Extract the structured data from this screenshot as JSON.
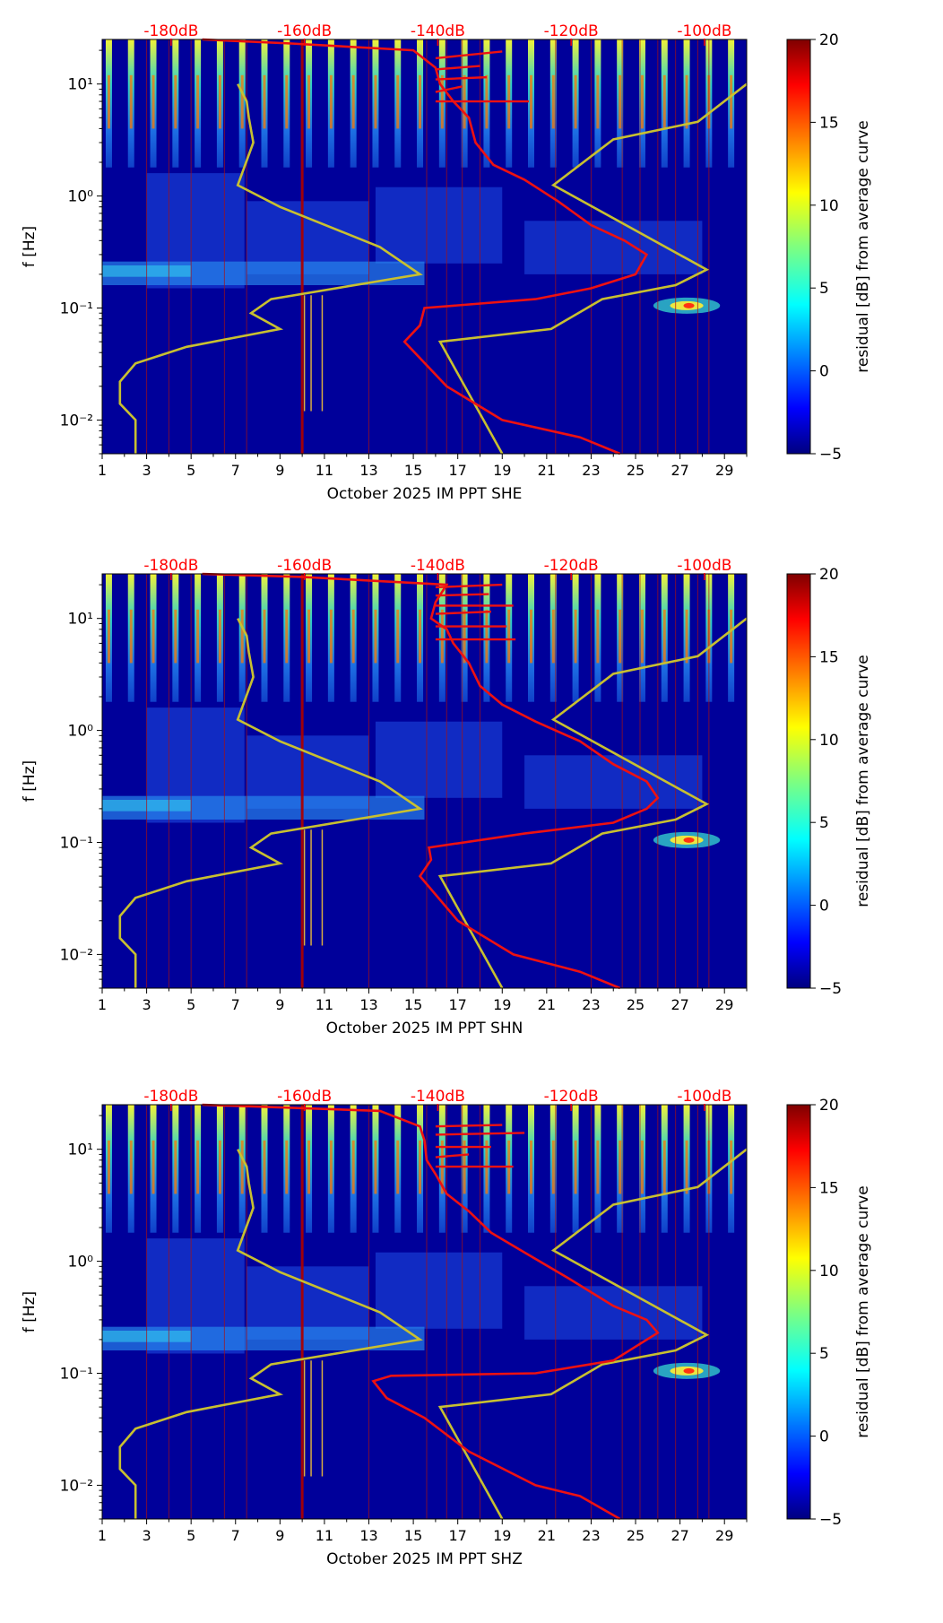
{
  "chart_data": [
    {
      "type": "heatmap",
      "channel": "SHE",
      "xlabel": "October 2025 IM PPT  SHE",
      "ylabel": "f [Hz]",
      "x_range": [
        1,
        30
      ],
      "x_ticks": [
        "1",
        "3",
        "5",
        "7",
        "9",
        "11",
        "13",
        "15",
        "17",
        "19",
        "21",
        "23",
        "25",
        "27",
        "29"
      ],
      "y_range": [
        0.005,
        25
      ],
      "y_scale": "log",
      "y_ticks": [
        {
          "value": 0.01,
          "label": "10⁻²"
        },
        {
          "value": 0.1,
          "label": "10⁻¹"
        },
        {
          "value": 1,
          "label": "10⁰"
        },
        {
          "value": 10,
          "label": "10¹"
        }
      ],
      "db_labels": [
        "-180dB",
        "-160dB",
        "-140dB",
        "-120dB",
        "-100dB"
      ],
      "db_label_days": [
        4.1,
        10.1,
        16.1,
        22.1,
        28.1
      ],
      "colorbar": {
        "label": "residual [dB] from average curve",
        "min": -5,
        "max": 20,
        "ticks": [
          "20",
          "15",
          "10",
          "5",
          "0",
          "−5"
        ]
      },
      "noise_model_high": [
        [
          2.5,
          0.005
        ],
        [
          2.5,
          0.01
        ],
        [
          1.8,
          0.014
        ],
        [
          1.8,
          0.022
        ],
        [
          2.5,
          0.032
        ],
        [
          4.8,
          0.045
        ],
        [
          9.0,
          0.065
        ],
        [
          7.7,
          0.09
        ],
        [
          8.6,
          0.12
        ],
        [
          15.3,
          0.2
        ],
        [
          13.5,
          0.35
        ],
        [
          9.0,
          0.8
        ],
        [
          7.1,
          1.25
        ],
        [
          7.8,
          3.0
        ],
        [
          7.6,
          5.0
        ],
        [
          7.5,
          7.0
        ],
        [
          7.1,
          10.0
        ]
      ],
      "noise_model_low": [
        [
          19.0,
          0.005
        ],
        [
          16.2,
          0.05
        ],
        [
          21.2,
          0.065
        ],
        [
          23.5,
          0.12
        ],
        [
          26.8,
          0.16
        ],
        [
          28.2,
          0.22
        ],
        [
          21.3,
          1.25
        ],
        [
          24.0,
          3.2
        ],
        [
          27.8,
          4.6
        ],
        [
          30.0,
          10.0
        ]
      ],
      "mean_psd": [
        [
          24.3,
          0.005
        ],
        [
          22.5,
          0.007
        ],
        [
          19.0,
          0.01
        ],
        [
          16.5,
          0.02
        ],
        [
          14.6,
          0.05
        ],
        [
          15.3,
          0.07
        ],
        [
          15.5,
          0.1
        ],
        [
          20.5,
          0.12
        ],
        [
          23.0,
          0.15
        ],
        [
          25.0,
          0.2
        ],
        [
          25.5,
          0.3
        ],
        [
          24.5,
          0.4
        ],
        [
          23.0,
          0.55
        ],
        [
          21.5,
          0.9
        ],
        [
          20.0,
          1.4
        ],
        [
          18.6,
          1.9
        ],
        [
          17.8,
          3.0
        ],
        [
          17.5,
          5.0
        ],
        [
          16.8,
          7.0
        ],
        [
          16.2,
          10.0
        ],
        [
          16.0,
          14.0
        ],
        [
          15.0,
          20.0
        ],
        [
          9.5,
          23.0
        ],
        [
          5.5,
          25.0
        ]
      ],
      "spikes": [
        [
          16.0,
          7.0
        ],
        [
          20.2,
          7.0
        ],
        [
          16.0,
          8.5
        ],
        [
          17.2,
          9.5
        ],
        [
          16.0,
          11.0
        ],
        [
          18.3,
          11.5
        ],
        [
          16.0,
          13.5
        ],
        [
          18.0,
          14.5
        ],
        [
          16.0,
          17.0
        ],
        [
          19.0,
          19.5
        ]
      ]
    },
    {
      "type": "heatmap",
      "channel": "SHN",
      "xlabel": "October 2025 IM PPT  SHN",
      "ylabel": "f [Hz]",
      "x_range": [
        1,
        30
      ],
      "x_ticks": [
        "1",
        "3",
        "5",
        "7",
        "9",
        "11",
        "13",
        "15",
        "17",
        "19",
        "21",
        "23",
        "25",
        "27",
        "29"
      ],
      "y_range": [
        0.005,
        25
      ],
      "y_scale": "log",
      "y_ticks": [
        {
          "value": 0.01,
          "label": "10⁻²"
        },
        {
          "value": 0.1,
          "label": "10⁻¹"
        },
        {
          "value": 1,
          "label": "10⁰"
        },
        {
          "value": 10,
          "label": "10¹"
        }
      ],
      "db_labels": [
        "-180dB",
        "-160dB",
        "-140dB",
        "-120dB",
        "-100dB"
      ],
      "db_label_days": [
        4.1,
        10.1,
        16.1,
        22.1,
        28.1
      ],
      "colorbar": {
        "label": "residual [dB] from average curve",
        "min": -5,
        "max": 20,
        "ticks": [
          "20",
          "15",
          "10",
          "5",
          "0",
          "−5"
        ]
      },
      "noise_model_high": [
        [
          2.5,
          0.005
        ],
        [
          2.5,
          0.01
        ],
        [
          1.8,
          0.014
        ],
        [
          1.8,
          0.022
        ],
        [
          2.5,
          0.032
        ],
        [
          4.8,
          0.045
        ],
        [
          9.0,
          0.065
        ],
        [
          7.7,
          0.09
        ],
        [
          8.6,
          0.12
        ],
        [
          15.3,
          0.2
        ],
        [
          13.5,
          0.35
        ],
        [
          9.0,
          0.8
        ],
        [
          7.1,
          1.25
        ],
        [
          7.8,
          3.0
        ],
        [
          7.6,
          5.0
        ],
        [
          7.5,
          7.0
        ],
        [
          7.1,
          10.0
        ]
      ],
      "noise_model_low": [
        [
          19.0,
          0.005
        ],
        [
          16.2,
          0.05
        ],
        [
          21.2,
          0.065
        ],
        [
          23.5,
          0.12
        ],
        [
          26.8,
          0.16
        ],
        [
          28.2,
          0.22
        ],
        [
          21.3,
          1.25
        ],
        [
          24.0,
          3.2
        ],
        [
          27.8,
          4.6
        ],
        [
          30.0,
          10.0
        ]
      ],
      "mean_psd": [
        [
          24.3,
          0.005
        ],
        [
          22.5,
          0.007
        ],
        [
          19.5,
          0.01
        ],
        [
          17.0,
          0.02
        ],
        [
          15.3,
          0.05
        ],
        [
          15.8,
          0.07
        ],
        [
          15.7,
          0.09
        ],
        [
          20.0,
          0.12
        ],
        [
          24.0,
          0.15
        ],
        [
          25.5,
          0.2
        ],
        [
          26.0,
          0.25
        ],
        [
          25.5,
          0.35
        ],
        [
          24.0,
          0.5
        ],
        [
          22.5,
          0.8
        ],
        [
          20.5,
          1.2
        ],
        [
          19.0,
          1.7
        ],
        [
          18.0,
          2.5
        ],
        [
          17.5,
          4.0
        ],
        [
          16.8,
          6.0
        ],
        [
          16.5,
          8.0
        ],
        [
          15.8,
          10.0
        ],
        [
          16.0,
          14.0
        ],
        [
          16.5,
          20.0
        ],
        [
          10.0,
          23.5
        ],
        [
          5.5,
          25.0
        ]
      ],
      "spikes": [
        [
          16.0,
          6.5
        ],
        [
          19.6,
          6.5
        ],
        [
          16.0,
          8.5
        ],
        [
          19.2,
          8.5
        ],
        [
          16.0,
          11.0
        ],
        [
          18.5,
          11.5
        ],
        [
          16.0,
          13.0
        ],
        [
          19.5,
          13.0
        ],
        [
          16.0,
          16.0
        ],
        [
          18.4,
          16.5
        ],
        [
          16.0,
          19.0
        ],
        [
          19.0,
          20.0
        ]
      ]
    },
    {
      "type": "heatmap",
      "channel": "SHZ",
      "xlabel": "October 2025 IM PPT  SHZ",
      "ylabel": "f [Hz]",
      "x_range": [
        1,
        30
      ],
      "x_ticks": [
        "1",
        "3",
        "5",
        "7",
        "9",
        "11",
        "13",
        "15",
        "17",
        "19",
        "21",
        "23",
        "25",
        "27",
        "29"
      ],
      "y_range": [
        0.005,
        25
      ],
      "y_scale": "log",
      "y_ticks": [
        {
          "value": 0.01,
          "label": "10⁻²"
        },
        {
          "value": 0.1,
          "label": "10⁻¹"
        },
        {
          "value": 1,
          "label": "10⁰"
        },
        {
          "value": 10,
          "label": "10¹"
        }
      ],
      "db_labels": [
        "-180dB",
        "-160dB",
        "-140dB",
        "-120dB",
        "-100dB"
      ],
      "db_label_days": [
        4.1,
        10.1,
        16.1,
        22.1,
        28.1
      ],
      "colorbar": {
        "label": "residual [dB] from average curve",
        "min": -5,
        "max": 20,
        "ticks": [
          "20",
          "15",
          "10",
          "5",
          "0",
          "−5"
        ]
      },
      "noise_model_high": [
        [
          2.5,
          0.005
        ],
        [
          2.5,
          0.01
        ],
        [
          1.8,
          0.014
        ],
        [
          1.8,
          0.022
        ],
        [
          2.5,
          0.032
        ],
        [
          4.8,
          0.045
        ],
        [
          9.0,
          0.065
        ],
        [
          7.7,
          0.09
        ],
        [
          8.6,
          0.12
        ],
        [
          15.3,
          0.2
        ],
        [
          13.5,
          0.35
        ],
        [
          9.0,
          0.8
        ],
        [
          7.1,
          1.25
        ],
        [
          7.8,
          3.0
        ],
        [
          7.6,
          5.0
        ],
        [
          7.5,
          7.0
        ],
        [
          7.1,
          10.0
        ]
      ],
      "noise_model_low": [
        [
          19.0,
          0.005
        ],
        [
          16.2,
          0.05
        ],
        [
          21.2,
          0.065
        ],
        [
          23.5,
          0.12
        ],
        [
          26.8,
          0.16
        ],
        [
          28.2,
          0.22
        ],
        [
          21.3,
          1.25
        ],
        [
          24.0,
          3.2
        ],
        [
          27.8,
          4.6
        ],
        [
          30.0,
          10.0
        ]
      ],
      "mean_psd": [
        [
          24.3,
          0.005
        ],
        [
          22.5,
          0.008
        ],
        [
          20.5,
          0.01
        ],
        [
          17.5,
          0.02
        ],
        [
          15.5,
          0.04
        ],
        [
          13.8,
          0.06
        ],
        [
          13.2,
          0.085
        ],
        [
          14.0,
          0.095
        ],
        [
          20.5,
          0.1
        ],
        [
          24.0,
          0.13
        ],
        [
          26.0,
          0.23
        ],
        [
          25.5,
          0.3
        ],
        [
          24.0,
          0.4
        ],
        [
          22.0,
          0.7
        ],
        [
          20.0,
          1.2
        ],
        [
          18.5,
          1.8
        ],
        [
          17.5,
          2.8
        ],
        [
          16.5,
          4.0
        ],
        [
          16.0,
          6.0
        ],
        [
          15.6,
          8.0
        ],
        [
          15.5,
          12.0
        ],
        [
          15.3,
          16.0
        ],
        [
          13.5,
          22.0
        ],
        [
          5.5,
          25.0
        ]
      ],
      "spikes": [
        [
          16.0,
          7.0
        ],
        [
          19.5,
          7.0
        ],
        [
          16.0,
          8.5
        ],
        [
          17.5,
          9.0
        ],
        [
          16.0,
          10.5
        ],
        [
          18.5,
          10.5
        ],
        [
          16.0,
          13.5
        ],
        [
          20.0,
          14.0
        ],
        [
          16.0,
          16.0
        ],
        [
          19.0,
          16.5
        ]
      ]
    }
  ]
}
